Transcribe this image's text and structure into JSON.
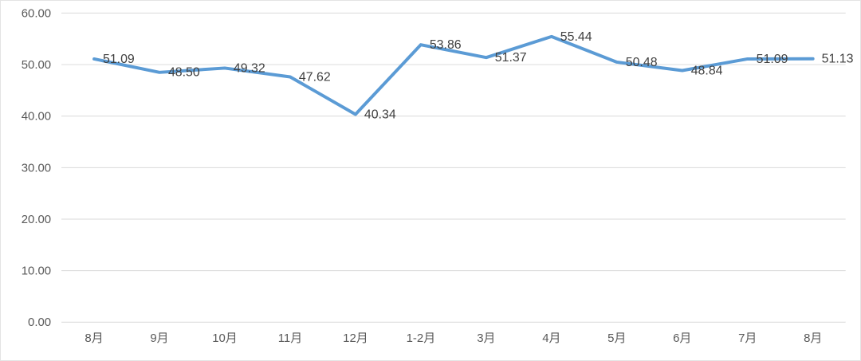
{
  "chart_data": {
    "type": "line",
    "title": "",
    "xlabel": "",
    "ylabel": "",
    "categories": [
      "8月",
      "9月",
      "10月",
      "11月",
      "12月",
      "1-2月",
      "3月",
      "4月",
      "5月",
      "6月",
      "7月",
      "8月"
    ],
    "series": [
      {
        "name": "",
        "values": [
          51.09,
          48.5,
          49.32,
          47.62,
          40.34,
          53.86,
          51.37,
          55.44,
          50.48,
          48.84,
          51.09,
          51.13
        ],
        "color": "#5b9bd5"
      }
    ],
    "data_labels": [
      "51.09",
      "48.50",
      "49.32",
      "47.62",
      "40.34",
      "53.86",
      "51.37",
      "55.44",
      "50.48",
      "48.84",
      "51.09",
      "51.13"
    ],
    "ylim": [
      0,
      60
    ],
    "y_tick_step": 10,
    "y_tick_labels": [
      "0.00",
      "10.00",
      "20.00",
      "30.00",
      "40.00",
      "50.00",
      "60.00"
    ],
    "grid": "horizontal",
    "legend": "none",
    "colors": {
      "line": "#5b9bd5",
      "grid": "#d9d9d9",
      "axis_text": "#595959",
      "data_label_text": "#404040",
      "background": "#ffffff"
    }
  }
}
